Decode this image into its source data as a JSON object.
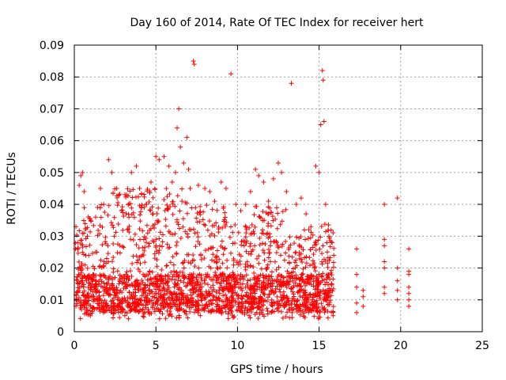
{
  "chart_data": {
    "type": "scatter",
    "title": "Day 160 of 2014, Rate Of TEC Index for receiver hert",
    "xlabel": "GPS time / hours",
    "ylabel": "ROTI / TECUs",
    "xlim": [
      0,
      25
    ],
    "ylim": [
      0,
      0.09
    ],
    "xticks": [
      0,
      5,
      10,
      15,
      20,
      25
    ],
    "xtick_labels": [
      "0",
      "5",
      "10",
      "15",
      "20",
      "25"
    ],
    "yticks": [
      0,
      0.01,
      0.02,
      0.03,
      0.04,
      0.05,
      0.06,
      0.07,
      0.08,
      0.09
    ],
    "ytick_labels": [
      "0",
      "0.01",
      "0.02",
      "0.03",
      "0.04",
      "0.05",
      "0.06",
      "0.07",
      "0.08",
      "0.09"
    ],
    "grid": true,
    "marker": "+",
    "color": "#ff0000",
    "series": [
      {
        "name": "ROTI",
        "points": [
          [
            0.1,
            0.033
          ],
          [
            0.2,
            0.028
          ],
          [
            0.3,
            0.046
          ],
          [
            0.4,
            0.049
          ],
          [
            0.5,
            0.05
          ],
          [
            0.6,
            0.044
          ],
          [
            0.8,
            0.03
          ],
          [
            1.0,
            0.035
          ],
          [
            1.3,
            0.025
          ],
          [
            1.6,
            0.045
          ],
          [
            1.8,
            0.04
          ],
          [
            2.1,
            0.054
          ],
          [
            2.3,
            0.05
          ],
          [
            2.6,
            0.045
          ],
          [
            2.9,
            0.038
          ],
          [
            3.2,
            0.043
          ],
          [
            3.5,
            0.05
          ],
          [
            3.8,
            0.052
          ],
          [
            4.0,
            0.045
          ],
          [
            4.4,
            0.04
          ],
          [
            4.7,
            0.047
          ],
          [
            5.0,
            0.055
          ],
          [
            5.2,
            0.054
          ],
          [
            5.5,
            0.055
          ],
          [
            5.8,
            0.052
          ],
          [
            6.0,
            0.047
          ],
          [
            6.2,
            0.05
          ],
          [
            6.3,
            0.064
          ],
          [
            6.4,
            0.07
          ],
          [
            6.5,
            0.058
          ],
          [
            6.7,
            0.053
          ],
          [
            6.9,
            0.061
          ],
          [
            7.0,
            0.051
          ],
          [
            7.1,
            0.045
          ],
          [
            7.3,
            0.085
          ],
          [
            7.35,
            0.084
          ],
          [
            7.6,
            0.046
          ],
          [
            8.0,
            0.045
          ],
          [
            8.3,
            0.044
          ],
          [
            8.6,
            0.041
          ],
          [
            9.0,
            0.047
          ],
          [
            9.3,
            0.045
          ],
          [
            9.6,
            0.081
          ],
          [
            9.9,
            0.04
          ],
          [
            10.2,
            0.038
          ],
          [
            10.5,
            0.04
          ],
          [
            10.8,
            0.044
          ],
          [
            11.1,
            0.051
          ],
          [
            11.3,
            0.049
          ],
          [
            11.6,
            0.047
          ],
          [
            11.9,
            0.041
          ],
          [
            12.2,
            0.048
          ],
          [
            12.5,
            0.053
          ],
          [
            12.7,
            0.05
          ],
          [
            13.0,
            0.044
          ],
          [
            13.3,
            0.078
          ],
          [
            13.6,
            0.04
          ],
          [
            13.9,
            0.042
          ],
          [
            14.2,
            0.037
          ],
          [
            14.5,
            0.033
          ],
          [
            14.8,
            0.052
          ],
          [
            15.0,
            0.05
          ],
          [
            15.1,
            0.065
          ],
          [
            15.2,
            0.082
          ],
          [
            15.25,
            0.079
          ],
          [
            15.3,
            0.066
          ],
          [
            15.4,
            0.04
          ],
          [
            15.6,
            0.03
          ],
          [
            15.8,
            0.028
          ],
          [
            15.9,
            0.024
          ],
          [
            17.3,
            0.026
          ],
          [
            17.3,
            0.018
          ],
          [
            17.3,
            0.014
          ],
          [
            17.3,
            0.009
          ],
          [
            17.3,
            0.006
          ],
          [
            17.7,
            0.013
          ],
          [
            17.7,
            0.011
          ],
          [
            17.7,
            0.008
          ],
          [
            19.0,
            0.04
          ],
          [
            19.0,
            0.029
          ],
          [
            19.0,
            0.027
          ],
          [
            19.0,
            0.022
          ],
          [
            19.0,
            0.02
          ],
          [
            19.0,
            0.014
          ],
          [
            19.0,
            0.012
          ],
          [
            19.8,
            0.042
          ],
          [
            19.8,
            0.02
          ],
          [
            19.8,
            0.016
          ],
          [
            19.8,
            0.013
          ],
          [
            19.8,
            0.01
          ],
          [
            20.5,
            0.026
          ],
          [
            20.5,
            0.019
          ],
          [
            20.5,
            0.018
          ],
          [
            20.5,
            0.014
          ],
          [
            20.5,
            0.012
          ],
          [
            20.5,
            0.01
          ],
          [
            20.5,
            0.008
          ]
        ]
      }
    ]
  }
}
